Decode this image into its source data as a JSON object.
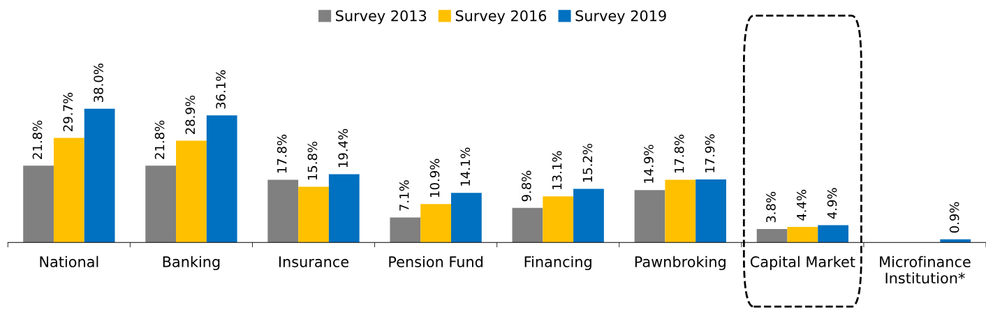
{
  "chart_data": {
    "type": "bar",
    "categories": [
      "National",
      "Banking",
      "Insurance",
      "Pension Fund",
      "Financing",
      "Pawnbroking",
      "Capital Market",
      "Microfinance\nInstitution*"
    ],
    "series": [
      {
        "name": "Survey 2013",
        "color": "#808080",
        "values": [
          21.8,
          21.8,
          17.8,
          7.1,
          9.8,
          14.9,
          3.8,
          null
        ],
        "value_labels": [
          "21.8%",
          "21.8%",
          "17.8%",
          "7.1%",
          "9.8%",
          "14.9%",
          "3.8%",
          null
        ]
      },
      {
        "name": "Survey 2016",
        "color": "#ffc000",
        "values": [
          29.7,
          28.9,
          15.8,
          10.9,
          13.1,
          17.8,
          4.4,
          null
        ],
        "value_labels": [
          "29.7%",
          "28.9%",
          "15.8%",
          "10.9%",
          "13.1%",
          "17.8%",
          "4.4%",
          null
        ]
      },
      {
        "name": "Survey 2019",
        "color": "#0070c0",
        "values": [
          38.0,
          36.1,
          19.4,
          14.1,
          15.2,
          17.9,
          4.9,
          0.9
        ],
        "value_labels": [
          "38.0%",
          "36.1%",
          "19.4%",
          "14.1%",
          "15.2%",
          "17.9%",
          "4.9%",
          "0.9%"
        ]
      }
    ],
    "legend": "top",
    "grid": false
  }
}
